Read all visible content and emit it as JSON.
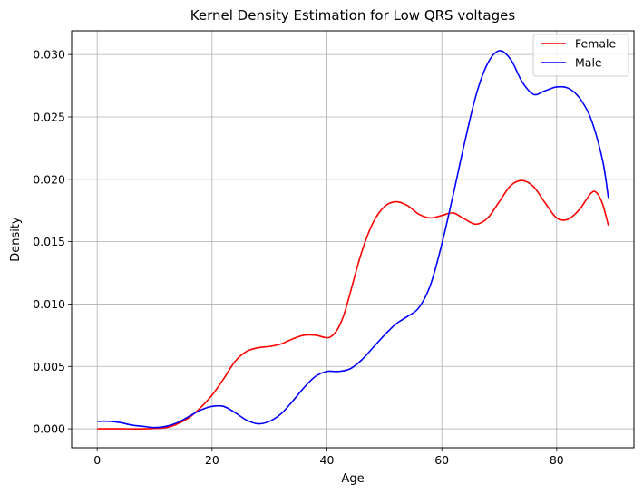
{
  "chart_data": {
    "type": "line",
    "title": "Kernel Density Estimation for Low QRS voltages",
    "xlabel": "Age",
    "ylabel": "Density",
    "xlim": [
      -4.45,
      93.45
    ],
    "ylim": [
      -0.00152,
      0.0319
    ],
    "xticks": [
      0,
      20,
      40,
      60,
      80
    ],
    "xtick_labels": [
      "0",
      "20",
      "40",
      "60",
      "80"
    ],
    "yticks": [
      0,
      0.005,
      0.01,
      0.015,
      0.02,
      0.025,
      0.03
    ],
    "ytick_labels": [
      "0.000",
      "0.005",
      "0.010",
      "0.015",
      "0.020",
      "0.025",
      "0.030"
    ],
    "grid": true,
    "legend": "top-right",
    "series": [
      {
        "name": "Female",
        "color": "#ff0000",
        "points": [
          [
            0,
            0
          ],
          [
            4,
            0
          ],
          [
            8,
            0
          ],
          [
            12,
            0.0001
          ],
          [
            14,
            0.0004
          ],
          [
            16,
            0.0009
          ],
          [
            18,
            0.0017
          ],
          [
            20,
            0.0027
          ],
          [
            22,
            0.004
          ],
          [
            24,
            0.0054
          ],
          [
            26,
            0.0062
          ],
          [
            28,
            0.0065
          ],
          [
            30,
            0.0066
          ],
          [
            32,
            0.0068
          ],
          [
            34,
            0.0072
          ],
          [
            36,
            0.0075
          ],
          [
            38,
            0.0075
          ],
          [
            40,
            0.0073
          ],
          [
            41,
            0.0075
          ],
          [
            42,
            0.0081
          ],
          [
            43,
            0.0092
          ],
          [
            44,
            0.0108
          ],
          [
            46,
            0.0141
          ],
          [
            48,
            0.0165
          ],
          [
            50,
            0.0178
          ],
          [
            52,
            0.0182
          ],
          [
            54,
            0.0179
          ],
          [
            56,
            0.0172
          ],
          [
            58,
            0.0169
          ],
          [
            60,
            0.0171
          ],
          [
            62,
            0.0173
          ],
          [
            64,
            0.0168
          ],
          [
            66,
            0.0164
          ],
          [
            68,
            0.0169
          ],
          [
            70,
            0.0182
          ],
          [
            72,
            0.0195
          ],
          [
            74,
            0.0199
          ],
          [
            76,
            0.0194
          ],
          [
            78,
            0.0181
          ],
          [
            80,
            0.0169
          ],
          [
            82,
            0.0168
          ],
          [
            84,
            0.0176
          ],
          [
            86,
            0.0189
          ],
          [
            87,
            0.0189
          ],
          [
            88,
            0.018
          ],
          [
            89,
            0.0163
          ]
        ]
      },
      {
        "name": "Male",
        "color": "#0000ff",
        "points": [
          [
            0,
            0.0006
          ],
          [
            2,
            0.0006
          ],
          [
            4,
            0.0005
          ],
          [
            6,
            0.0003
          ],
          [
            8,
            0.0002
          ],
          [
            10,
            0.0001
          ],
          [
            12,
            0.0002
          ],
          [
            14,
            0.0005
          ],
          [
            16,
            0.001
          ],
          [
            18,
            0.0015
          ],
          [
            20,
            0.0018
          ],
          [
            22,
            0.0018
          ],
          [
            24,
            0.0013
          ],
          [
            26,
            0.0007
          ],
          [
            28,
            0.0004
          ],
          [
            30,
            0.0006
          ],
          [
            32,
            0.0012
          ],
          [
            34,
            0.0022
          ],
          [
            36,
            0.0033
          ],
          [
            38,
            0.0042
          ],
          [
            40,
            0.0046
          ],
          [
            42,
            0.0046
          ],
          [
            44,
            0.0048
          ],
          [
            46,
            0.0055
          ],
          [
            48,
            0.0065
          ],
          [
            50,
            0.0075
          ],
          [
            52,
            0.0084
          ],
          [
            54,
            0.009
          ],
          [
            56,
            0.0097
          ],
          [
            58,
            0.0115
          ],
          [
            60,
            0.0148
          ],
          [
            62,
            0.0188
          ],
          [
            64,
            0.023
          ],
          [
            66,
            0.0268
          ],
          [
            68,
            0.0293
          ],
          [
            70,
            0.0303
          ],
          [
            72,
            0.0296
          ],
          [
            74,
            0.0278
          ],
          [
            76,
            0.0268
          ],
          [
            78,
            0.0271
          ],
          [
            80,
            0.0274
          ],
          [
            82,
            0.0273
          ],
          [
            84,
            0.0265
          ],
          [
            86,
            0.0248
          ],
          [
            88,
            0.0215
          ],
          [
            89,
            0.0185
          ]
        ]
      }
    ]
  }
}
